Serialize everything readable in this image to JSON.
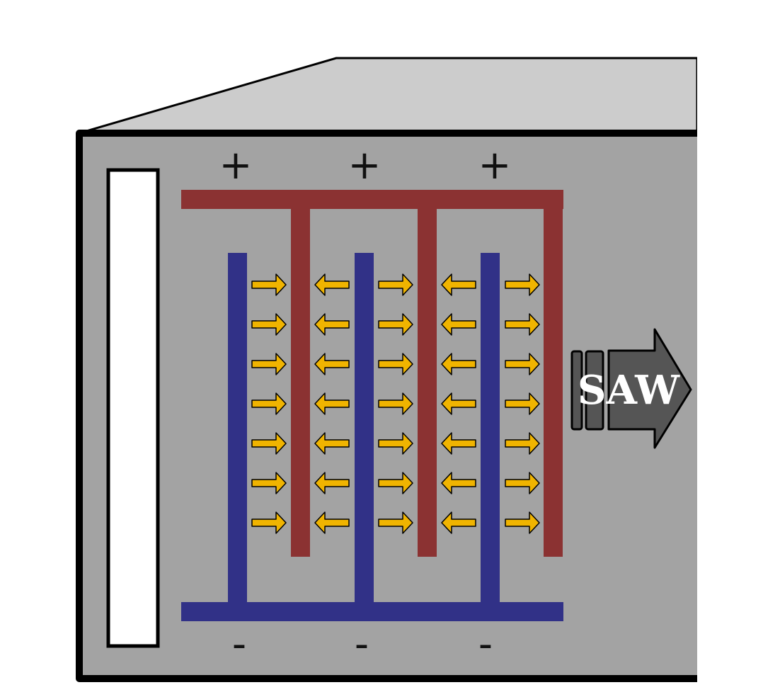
{
  "diagram": {
    "polarity": {
      "positive": "+",
      "negative": "-"
    },
    "wave_label": "SAW",
    "field_directions": [
      "right",
      "left",
      "right",
      "left",
      "right"
    ],
    "arrow_rows": 7,
    "colors": {
      "device_top": "#cccccc",
      "device_face": "#a3a3a3",
      "outline": "#000000",
      "window": "#ffffff",
      "positive_electrode": "#8b3232",
      "negative_electrode": "#313187",
      "field_arrow": "#f0b400",
      "saw_arrow": "#555555"
    }
  }
}
